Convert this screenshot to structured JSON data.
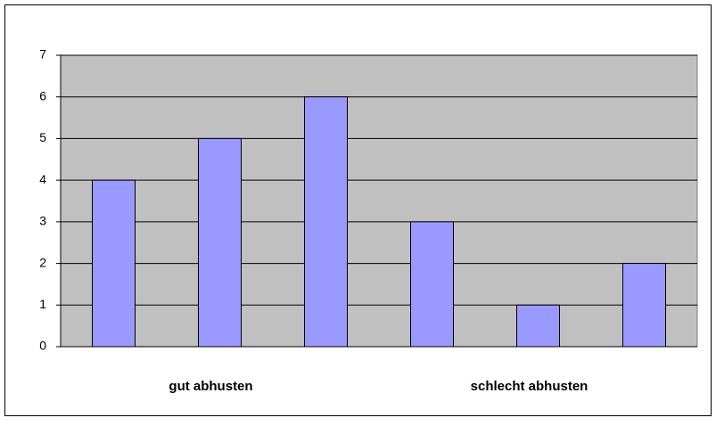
{
  "chart_data": {
    "type": "bar",
    "categories": [
      null,
      "gut abhusten",
      null,
      null,
      "schlecht abhusten",
      null
    ],
    "values": [
      4,
      5,
      6,
      3,
      1,
      2
    ],
    "color": "#9999ff",
    "ylim": [
      0,
      7
    ],
    "yticks": [
      0,
      1,
      2,
      3,
      4,
      5,
      6,
      7
    ],
    "grid": true
  }
}
